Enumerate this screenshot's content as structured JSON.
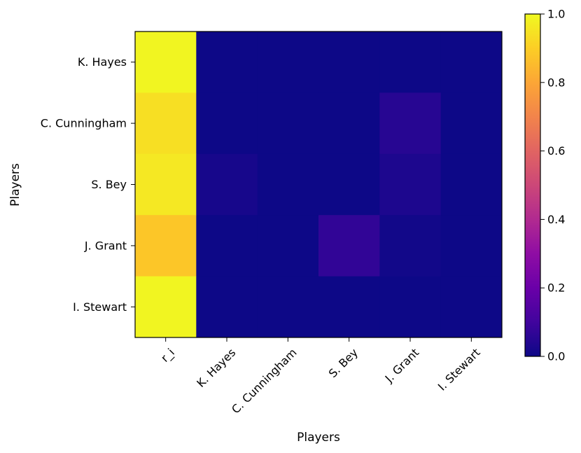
{
  "chart_data": {
    "type": "heatmap",
    "xlabel": "Players",
    "ylabel": "Players",
    "x_categories": [
      "r_i",
      "K. Hayes",
      "C. Cunningham",
      "S. Bey",
      "J. Grant",
      "I. Stewart"
    ],
    "y_categories": [
      "K. Hayes",
      "C. Cunningham",
      "S. Bey",
      "J. Grant",
      "I. Stewart"
    ],
    "values": [
      [
        0.99,
        0.0,
        0.0,
        0.0,
        0.0,
        0.0
      ],
      [
        0.94,
        0.0,
        0.0,
        0.0,
        0.05,
        0.0
      ],
      [
        0.96,
        0.02,
        0.0,
        0.0,
        0.03,
        0.0
      ],
      [
        0.88,
        0.0,
        0.0,
        0.07,
        0.01,
        0.0
      ],
      [
        0.99,
        0.0,
        0.0,
        0.0,
        0.0,
        0.0
      ]
    ],
    "colormap": "plasma",
    "colorbar": {
      "range": [
        0.0,
        1.0
      ],
      "ticks": [
        "0.0",
        "0.2",
        "0.4",
        "0.6",
        "0.8",
        "1.0"
      ]
    }
  }
}
